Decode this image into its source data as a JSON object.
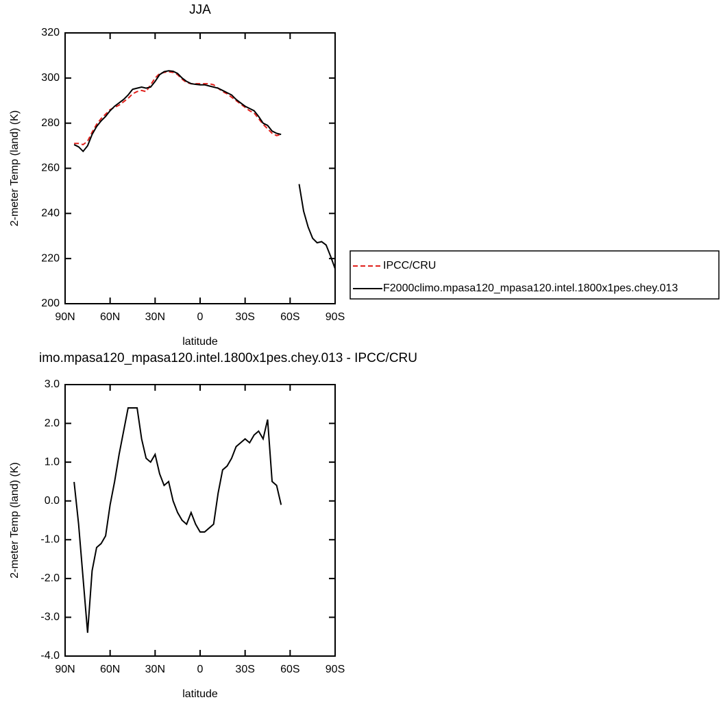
{
  "chart_data": [
    {
      "type": "line",
      "title": "JJA",
      "xlabel": "latitude",
      "ylabel": "2-meter Temp (land) (K)",
      "xlim": [
        90,
        -90
      ],
      "ylim": [
        200,
        320
      ],
      "xticks": [
        {
          "value": 90,
          "label": "90N"
        },
        {
          "value": 60,
          "label": "60N"
        },
        {
          "value": 30,
          "label": "30N"
        },
        0,
        {
          "value": -30,
          "label": "30S"
        },
        {
          "value": -60,
          "label": "60S"
        },
        {
          "value": -90,
          "label": "90S"
        }
      ],
      "yticks": [
        200,
        220,
        240,
        260,
        280,
        300,
        320
      ],
      "legend": "right",
      "x": [
        84,
        81,
        78,
        75,
        72,
        69,
        66,
        63,
        60,
        57,
        54,
        51,
        48,
        45,
        42,
        39,
        36,
        33,
        30,
        27,
        24,
        21,
        18,
        15,
        12,
        9,
        6,
        3,
        0,
        -3,
        -6,
        -9,
        -12,
        -15,
        -18,
        -21,
        -24,
        -27,
        -30,
        -33,
        -36,
        -39,
        -42,
        -45,
        -48,
        -51,
        -54,
        -57,
        -60,
        -63,
        -66,
        -69,
        -72,
        -75,
        -78,
        -81,
        -84,
        -87,
        -90
      ],
      "series": [
        {
          "name": "IPCC/CRU",
          "color": "#e0201b",
          "dash": true,
          "values": [
            271,
            271,
            270.5,
            272,
            276,
            279.5,
            282,
            284,
            286,
            287,
            288,
            289.5,
            291,
            293,
            294,
            294.5,
            294,
            297,
            300,
            302,
            302.5,
            302.8,
            302.5,
            301.5,
            299.5,
            298,
            297.5,
            297.5,
            297.5,
            297.5,
            297.5,
            297,
            295.5,
            294,
            293,
            291.5,
            290,
            288.5,
            287,
            285.5,
            284.5,
            282,
            279.5,
            277.5,
            275.5,
            274.5,
            275,
            null,
            null,
            null,
            null,
            null,
            null,
            null,
            null,
            null,
            null,
            null,
            null
          ]
        },
        {
          "name": "F2000climo.mpasa120_mpasa120.intel.1800x1pes.chey.013",
          "color": "#000000",
          "dash": false,
          "values": [
            270.5,
            269.5,
            267.5,
            270,
            275,
            278.5,
            281,
            283,
            285.5,
            287.5,
            289,
            290.5,
            292.5,
            295,
            295.5,
            296,
            295.5,
            296,
            298.5,
            301.5,
            302.8,
            303.2,
            303,
            302,
            300,
            298.5,
            297.5,
            297.2,
            297,
            297,
            296.5,
            296,
            295.5,
            294.5,
            293.5,
            292.5,
            290.5,
            289,
            287.5,
            286.5,
            285.5,
            283,
            280,
            279,
            276.5,
            275.5,
            275,
            null,
            null,
            null,
            253,
            241,
            234,
            229,
            227,
            227.5,
            226,
            221,
            215.5
          ]
        }
      ]
    },
    {
      "type": "line",
      "title": "imo.mpasa120_mpasa120.intel.1800x1pes.chey.013 - IPCC/CRU",
      "xlabel": "latitude",
      "ylabel": "2-meter Temp (land) (K)",
      "xlim": [
        90,
        -90
      ],
      "ylim": [
        -4,
        3
      ],
      "xticks": [
        {
          "value": 90,
          "label": "90N"
        },
        {
          "value": 60,
          "label": "60N"
        },
        {
          "value": 30,
          "label": "30N"
        },
        0,
        {
          "value": -30,
          "label": "30S"
        },
        {
          "value": -60,
          "label": "60S"
        },
        {
          "value": -90,
          "label": "90S"
        }
      ],
      "yticks": [
        {
          "value": -4,
          "label": "-4.0"
        },
        {
          "value": -3,
          "label": "-3.0"
        },
        {
          "value": -2,
          "label": "-2.0"
        },
        {
          "value": -1,
          "label": "-1.0"
        },
        {
          "value": 0,
          "label": "0.0"
        },
        {
          "value": 1,
          "label": "1.0"
        },
        {
          "value": 2,
          "label": "2.0"
        },
        {
          "value": 3,
          "label": "3.0"
        }
      ],
      "x": [
        84,
        81,
        78,
        75,
        72,
        69,
        66,
        63,
        60,
        57,
        54,
        51,
        48,
        45,
        42,
        39,
        36,
        33,
        30,
        27,
        24,
        21,
        18,
        15,
        12,
        9,
        6,
        3,
        0,
        -3,
        -6,
        -9,
        -12,
        -15,
        -18,
        -21,
        -24,
        -27,
        -30,
        -33,
        -36,
        -39,
        -42,
        -45,
        -48,
        -51,
        -54
      ],
      "series": [
        {
          "color": "#000000",
          "dash": false,
          "values": [
            0.49,
            -0.6,
            -2.0,
            -3.4,
            -1.8,
            -1.2,
            -1.1,
            -0.9,
            -0.1,
            0.5,
            1.2,
            1.8,
            2.4,
            2.4,
            2.4,
            1.6,
            1.1,
            1.0,
            1.2,
            0.7,
            0.4,
            0.5,
            0.0,
            -0.3,
            -0.5,
            -0.6,
            -0.3,
            -0.6,
            -0.8,
            -0.8,
            -0.7,
            -0.6,
            0.2,
            0.8,
            0.9,
            1.1,
            1.4,
            1.5,
            1.6,
            1.5,
            1.7,
            1.8,
            1.6,
            2.1,
            0.5,
            0.4,
            -0.1
          ]
        }
      ]
    }
  ]
}
